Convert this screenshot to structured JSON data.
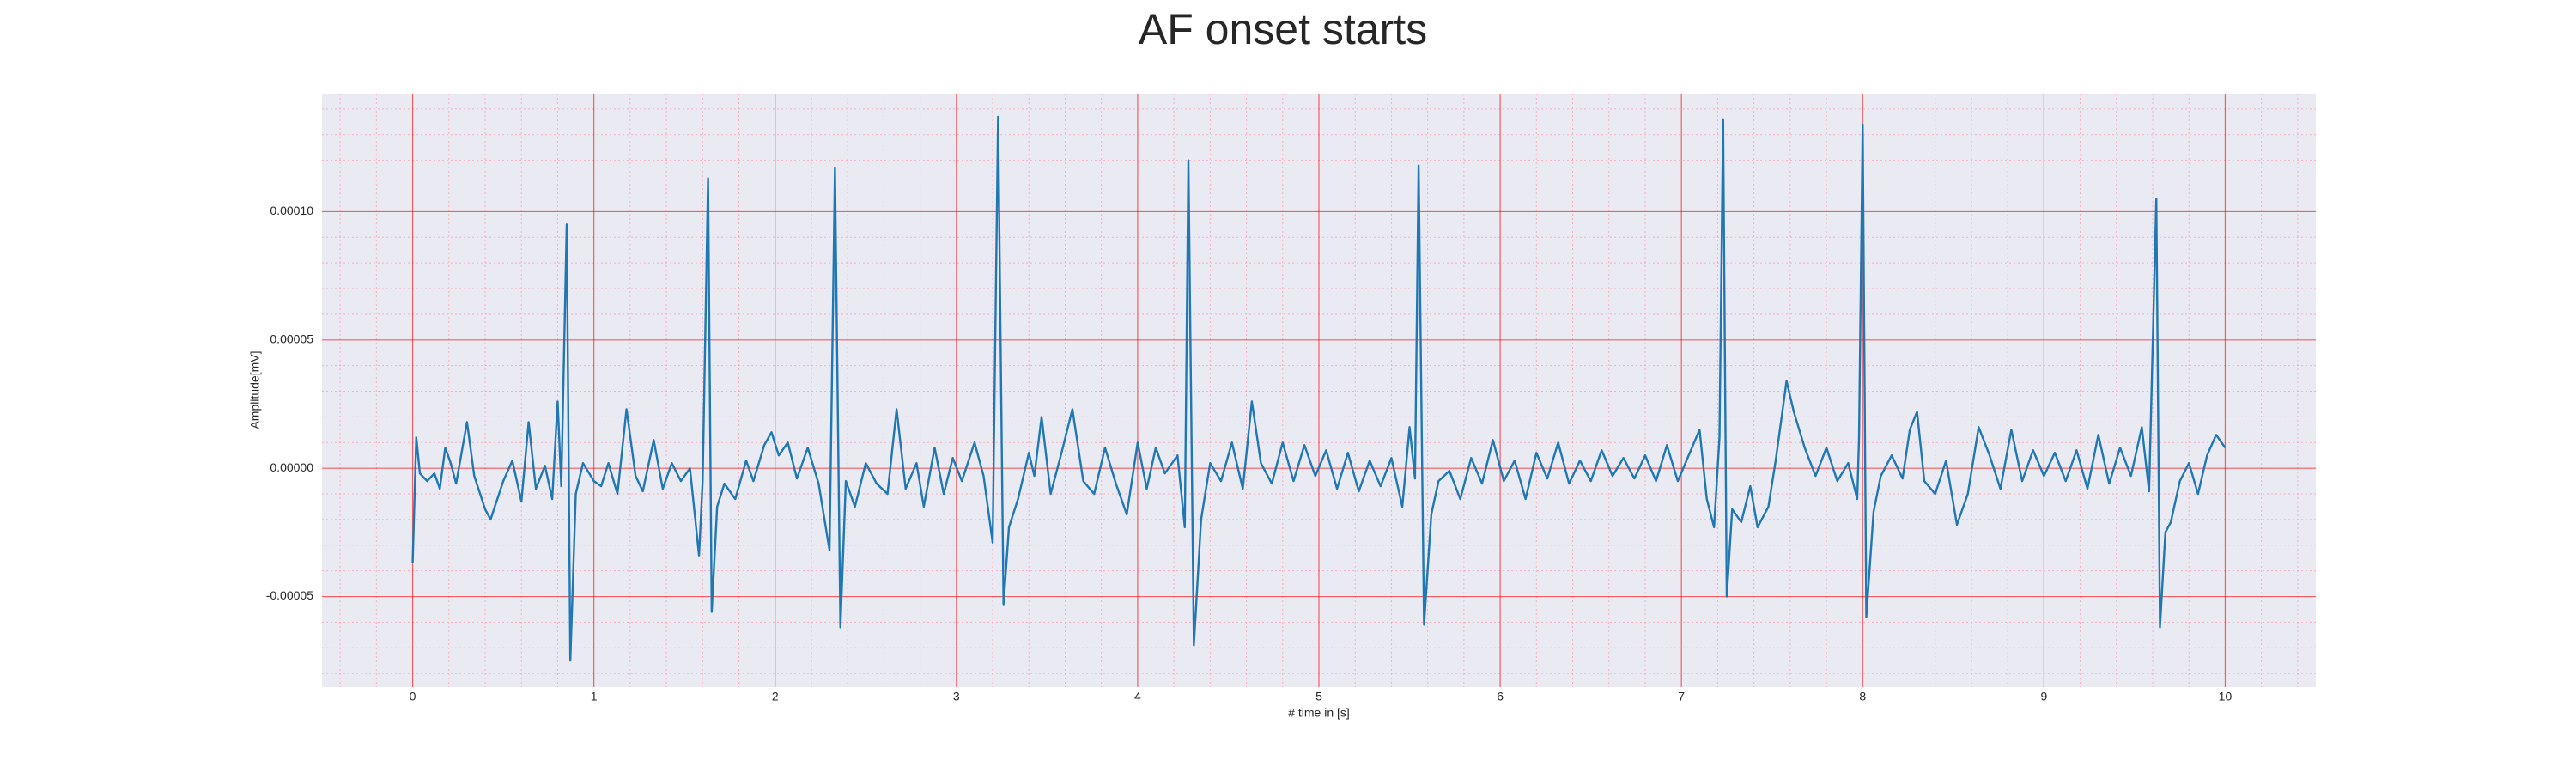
{
  "chart_data": {
    "type": "line",
    "title": "AF onset starts",
    "xlabel": "# time in [s]",
    "ylabel": "Amplitude[mV]",
    "color": "#1f77b4",
    "grid": true,
    "minor_grid": true,
    "xlim": [
      -0.5,
      10.5
    ],
    "ylim": [
      -8.53e-05,
      0.000146
    ],
    "xticks": [
      0,
      1,
      2,
      3,
      4,
      5,
      6,
      7,
      8,
      9,
      10
    ],
    "yticks": [
      {
        "value": -5e-05,
        "label": "-0.00005"
      },
      {
        "value": 0,
        "label": "0.00000"
      },
      {
        "value": 5e-05,
        "label": "0.00005"
      },
      {
        "value": 0.0001,
        "label": "0.00010"
      }
    ],
    "x": [
      0,
      0.02,
      0.04,
      0.08,
      0.12,
      0.15,
      0.18,
      0.21,
      0.24,
      0.3,
      0.34,
      0.4,
      0.43,
      0.5,
      0.55,
      0.6,
      0.64,
      0.68,
      0.73,
      0.77,
      0.8,
      0.82,
      0.85,
      0.87,
      0.9,
      0.94,
      1.0,
      1.04,
      1.08,
      1.13,
      1.18,
      1.23,
      1.27,
      1.33,
      1.38,
      1.43,
      1.48,
      1.53,
      1.58,
      1.6,
      1.63,
      1.65,
      1.68,
      1.72,
      1.78,
      1.84,
      1.88,
      1.94,
      1.98,
      2.02,
      2.07,
      2.12,
      2.18,
      2.24,
      2.3,
      2.33,
      2.36,
      2.39,
      2.44,
      2.5,
      2.56,
      2.62,
      2.67,
      2.72,
      2.78,
      2.82,
      2.88,
      2.93,
      2.98,
      3.03,
      3.1,
      3.15,
      3.2,
      3.23,
      3.26,
      3.29,
      3.34,
      3.4,
      3.43,
      3.47,
      3.52,
      3.58,
      3.64,
      3.7,
      3.76,
      3.82,
      3.88,
      3.94,
      4.0,
      4.05,
      4.1,
      4.15,
      4.22,
      4.26,
      4.28,
      4.31,
      4.35,
      4.4,
      4.46,
      4.52,
      4.58,
      4.63,
      4.68,
      4.74,
      4.8,
      4.86,
      4.92,
      4.98,
      5.04,
      5.1,
      5.16,
      5.22,
      5.28,
      5.34,
      5.4,
      5.46,
      5.5,
      5.53,
      5.55,
      5.58,
      5.62,
      5.66,
      5.72,
      5.78,
      5.84,
      5.9,
      5.96,
      6.02,
      6.08,
      6.14,
      6.2,
      6.26,
      6.32,
      6.38,
      6.44,
      6.5,
      6.56,
      6.62,
      6.68,
      6.74,
      6.8,
      6.86,
      6.92,
      6.98,
      7.04,
      7.1,
      7.14,
      7.18,
      7.21,
      7.23,
      7.25,
      7.28,
      7.33,
      7.38,
      7.42,
      7.48,
      7.52,
      7.58,
      7.62,
      7.68,
      7.74,
      7.8,
      7.86,
      7.92,
      7.97,
      7.98,
      8.0,
      8.02,
      8.06,
      8.1,
      8.16,
      8.22,
      8.26,
      8.3,
      8.34,
      8.4,
      8.46,
      8.52,
      8.58,
      8.64,
      8.7,
      8.76,
      8.82,
      8.88,
      8.94,
      9.0,
      9.06,
      9.12,
      9.18,
      9.24,
      9.3,
      9.36,
      9.42,
      9.48,
      9.54,
      9.58,
      9.62,
      9.64,
      9.67,
      9.7,
      9.75,
      9.8,
      9.85,
      9.9,
      9.95,
      10.0
    ],
    "values": [
      -3.7e-05,
      1.2e-05,
      -2e-06,
      -5e-06,
      -2e-06,
      -8e-06,
      8e-06,
      2e-06,
      -6e-06,
      1.8e-05,
      -3e-06,
      -1.6e-05,
      -2e-05,
      -5e-06,
      3e-06,
      -1.3e-05,
      1.8e-05,
      -8e-06,
      1e-06,
      -1.2e-05,
      2.6e-05,
      -7e-06,
      9.5e-05,
      -7.5e-05,
      -1e-05,
      2e-06,
      -5e-06,
      -7e-06,
      2e-06,
      -1e-05,
      2.3e-05,
      -3e-06,
      -9e-06,
      1.1e-05,
      -8e-06,
      2e-06,
      -5e-06,
      0,
      -3.4e-05,
      -5e-06,
      0.000113,
      -5.6e-05,
      -1.5e-05,
      -6e-06,
      -1.2e-05,
      3e-06,
      -5e-06,
      9e-06,
      1.4e-05,
      5e-06,
      1e-05,
      -4e-06,
      8e-06,
      -6e-06,
      -3.2e-05,
      0.000117,
      -6.2e-05,
      -5e-06,
      -1.5e-05,
      2e-06,
      -6e-06,
      -1e-05,
      2.3e-05,
      -8e-06,
      2e-06,
      -1.5e-05,
      8e-06,
      -1e-05,
      4e-06,
      -5e-06,
      1e-05,
      -3e-06,
      -2.9e-05,
      0.000137,
      -5.3e-05,
      -2.3e-05,
      -1.2e-05,
      6e-06,
      -3e-06,
      2e-05,
      -1e-05,
      6e-06,
      2.3e-05,
      -5e-06,
      -1e-05,
      8e-06,
      -6e-06,
      -1.8e-05,
      1e-05,
      -8e-06,
      8e-06,
      -2e-06,
      5e-06,
      -2.3e-05,
      0.00012,
      -6.9e-05,
      -2e-05,
      2e-06,
      -5e-06,
      1e-05,
      -8e-06,
      2.6e-05,
      2e-06,
      -6e-06,
      1e-05,
      -5e-06,
      9e-06,
      -3e-06,
      7e-06,
      -8e-06,
      6e-06,
      -9e-06,
      3e-06,
      -7e-06,
      4e-06,
      -1.5e-05,
      1.6e-05,
      -4e-06,
      0.000118,
      -6.1e-05,
      -1.8e-05,
      -5e-06,
      -1e-06,
      -1.2e-05,
      4e-06,
      -6e-06,
      1.1e-05,
      -5e-06,
      3e-06,
      -1.2e-05,
      6e-06,
      -4e-06,
      1e-05,
      -6e-06,
      3e-06,
      -5e-06,
      7e-06,
      -3e-06,
      4e-06,
      -4e-06,
      5e-06,
      -5e-06,
      9e-06,
      -5e-06,
      5e-06,
      1.5e-05,
      -1.2e-05,
      -2.3e-05,
      1.2e-05,
      0.000136,
      -5e-05,
      -1.6e-05,
      -2.1e-05,
      -7e-06,
      -2.3e-05,
      -1.5e-05,
      3e-06,
      3.4e-05,
      2.2e-05,
      8e-06,
      -3e-06,
      8e-06,
      -5e-06,
      2e-06,
      -1.2e-05,
      1.2e-05,
      0.000134,
      -5.8e-05,
      -1.7e-05,
      -3e-06,
      5e-06,
      -4e-06,
      1.5e-05,
      2.2e-05,
      -5e-06,
      -1e-05,
      3e-06,
      -2.2e-05,
      -1e-05,
      1.6e-05,
      5e-06,
      -8e-06,
      1.5e-05,
      -5e-06,
      7e-06,
      -3e-06,
      6e-06,
      -5e-06,
      7e-06,
      -8e-06,
      1.3e-05,
      -6e-06,
      8e-06,
      -3e-06,
      1.6e-05,
      -9e-06,
      0.000105,
      -6.2e-05,
      -2.5e-05,
      -2.1e-05,
      -5e-06,
      2e-06,
      -1e-05,
      5e-06,
      1.3e-05,
      8e-06
    ]
  }
}
